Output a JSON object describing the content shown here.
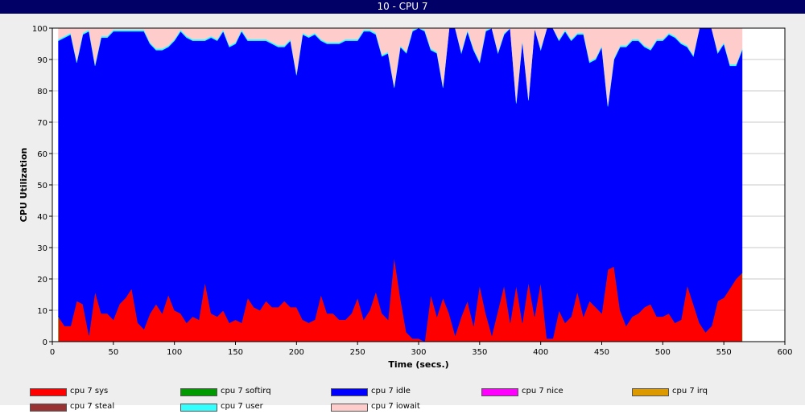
{
  "window": {
    "title": "10 - CPU 7"
  },
  "chart_data": {
    "type": "area",
    "stacked": true,
    "xlabel": "Time (secs.)",
    "ylabel": "CPU Utilization",
    "xlim": [
      0,
      600
    ],
    "ylim": [
      0,
      100
    ],
    "xticks": [
      "0",
      "50",
      "100",
      "150",
      "200",
      "250",
      "300",
      "350",
      "400",
      "450",
      "500",
      "550",
      "600"
    ],
    "yticks": [
      "0",
      "10",
      "20",
      "30",
      "40",
      "50",
      "60",
      "70",
      "80",
      "90",
      "100"
    ],
    "grid": "horizontal",
    "legend_position": "bottom",
    "x": [
      5,
      10,
      15,
      20,
      25,
      30,
      35,
      40,
      45,
      50,
      55,
      60,
      65,
      70,
      75,
      80,
      85,
      90,
      95,
      100,
      105,
      110,
      115,
      120,
      125,
      130,
      135,
      140,
      145,
      150,
      155,
      160,
      165,
      170,
      175,
      180,
      185,
      190,
      195,
      200,
      205,
      210,
      215,
      220,
      225,
      230,
      235,
      240,
      245,
      250,
      255,
      260,
      265,
      270,
      275,
      280,
      285,
      290,
      295,
      300,
      305,
      310,
      315,
      320,
      325,
      330,
      335,
      340,
      345,
      350,
      355,
      360,
      365,
      370,
      375,
      380,
      385,
      390,
      395,
      400,
      405,
      410,
      415,
      420,
      425,
      430,
      435,
      440,
      445,
      450,
      455,
      460,
      465,
      470,
      475,
      480,
      485,
      490,
      495,
      500,
      505,
      510,
      515,
      520,
      525,
      530,
      535,
      540,
      545,
      550,
      555,
      560,
      565
    ],
    "series": [
      {
        "name": "cpu 7 sys",
        "color": "#ff0000",
        "values": [
          8,
          5,
          5,
          13,
          12,
          2,
          16,
          9,
          9,
          7,
          12,
          14,
          17,
          6,
          4,
          9,
          12,
          9,
          15,
          10,
          9,
          6,
          8,
          7,
          19,
          9,
          8,
          10,
          6,
          7,
          6,
          14,
          11,
          10,
          13,
          11,
          11,
          13,
          11,
          11,
          7,
          6,
          7,
          15,
          9,
          9,
          7,
          7,
          9,
          14,
          7,
          10,
          16,
          9,
          7,
          27,
          14,
          3,
          1,
          1,
          0,
          15,
          8,
          14,
          9,
          2,
          8,
          13,
          5,
          18,
          9,
          2,
          10,
          18,
          6,
          18,
          6,
          19,
          8,
          19,
          1,
          1,
          10,
          6,
          8,
          16,
          8,
          13,
          11,
          9,
          23,
          24,
          10,
          5,
          8,
          9,
          11,
          12,
          8,
          8,
          9,
          6,
          7,
          18,
          12,
          6,
          3,
          5,
          13,
          14,
          17,
          20,
          22
        ]
      },
      {
        "name": "cpu 7 softirq",
        "color": "#009900",
        "values": [
          0,
          0,
          0,
          0,
          0,
          0,
          0,
          0,
          0,
          0,
          0,
          0,
          0,
          0,
          0,
          0,
          0,
          0,
          0,
          0,
          0,
          0,
          0,
          0,
          0,
          0,
          0,
          0,
          0,
          0,
          0,
          0,
          0,
          0,
          0,
          0,
          0,
          0,
          0,
          0,
          0,
          0,
          0,
          0,
          0,
          0,
          0,
          0,
          0,
          0,
          0,
          0,
          0,
          0,
          0,
          0,
          0,
          0,
          0,
          0,
          0,
          0,
          0,
          0,
          0,
          0,
          0,
          0,
          0,
          0,
          0,
          0,
          0,
          0,
          0,
          0,
          0,
          0,
          0,
          0,
          0,
          0,
          0,
          0,
          0,
          0,
          0,
          0,
          0,
          0,
          0,
          0,
          0,
          0,
          0,
          0,
          0,
          0,
          0,
          0,
          0,
          0,
          0,
          0,
          0,
          0,
          0,
          0,
          0,
          0,
          0,
          0,
          0
        ]
      },
      {
        "name": "cpu 7 idle",
        "color": "#0000ff",
        "values": [
          88,
          92,
          93,
          76,
          86,
          97,
          72,
          88,
          88,
          92,
          87,
          85,
          82,
          93,
          95,
          86,
          81,
          84,
          79,
          86,
          90,
          91,
          88,
          89,
          77,
          88,
          88,
          89,
          88,
          88,
          93,
          82,
          85,
          86,
          83,
          84,
          83,
          81,
          85,
          74,
          91,
          91,
          91,
          81,
          86,
          86,
          88,
          89,
          87,
          82,
          92,
          89,
          82,
          82,
          85,
          54,
          80,
          89,
          98,
          99,
          99,
          78,
          84,
          67,
          91,
          98,
          84,
          86,
          88,
          71,
          90,
          98,
          82,
          80,
          94,
          58,
          90,
          58,
          92,
          74,
          99,
          99,
          86,
          93,
          88,
          82,
          90,
          76,
          79,
          85,
          52,
          66,
          84,
          89,
          88,
          87,
          83,
          81,
          88,
          88,
          89,
          91,
          88,
          76,
          79,
          94,
          97,
          95,
          79,
          81,
          71,
          68,
          71
        ]
      },
      {
        "name": "cpu 7 nice",
        "color": "#ff00ff",
        "values": [
          0,
          0,
          0,
          0,
          0,
          0,
          0,
          0,
          0,
          0,
          0,
          0,
          0,
          0,
          0,
          0,
          0,
          0,
          0,
          0,
          0,
          0,
          0,
          0,
          0,
          0,
          0,
          0,
          0,
          0,
          0,
          0,
          0,
          0,
          0,
          0,
          0,
          0,
          0,
          0,
          0,
          0,
          0,
          0,
          0,
          0,
          0,
          0,
          0,
          0,
          0,
          0,
          0,
          0,
          0,
          0,
          0,
          0,
          0,
          0,
          0,
          0,
          0,
          0,
          0,
          0,
          0,
          0,
          0,
          0,
          0,
          0,
          0,
          0,
          0,
          0,
          0,
          0,
          0,
          0,
          0,
          0,
          0,
          0,
          0,
          0,
          0,
          0,
          0,
          0,
          0,
          0,
          0,
          0,
          0,
          0,
          0,
          0,
          0,
          0,
          0,
          0,
          0,
          0,
          0,
          0,
          0,
          0,
          0,
          0,
          0,
          0,
          0
        ]
      },
      {
        "name": "cpu 7 irq",
        "color": "#dd9900",
        "values": [
          0,
          0,
          0,
          0,
          0,
          0,
          0,
          0,
          0,
          0,
          0,
          0,
          0,
          0,
          0,
          0,
          0,
          0,
          0,
          0,
          0,
          0,
          0,
          0,
          0,
          0,
          0,
          0,
          0,
          0,
          0,
          0,
          0,
          0,
          0,
          0,
          0,
          0,
          0,
          0,
          0,
          0,
          0,
          0,
          0,
          0,
          0,
          0,
          0,
          0,
          0,
          0,
          0,
          0,
          0,
          0,
          0,
          0,
          0,
          0,
          0,
          0,
          0,
          0,
          0,
          0,
          0,
          0,
          0,
          0,
          0,
          0,
          0,
          0,
          0,
          0,
          0,
          0,
          0,
          0,
          0,
          0,
          0,
          0,
          0,
          0,
          0,
          0,
          0,
          0,
          0,
          0,
          0,
          0,
          0,
          0,
          0,
          0,
          0,
          0,
          0,
          0,
          0,
          0,
          0,
          0,
          0,
          0,
          0,
          0,
          0,
          0,
          0
        ]
      },
      {
        "name": "cpu 7 steal",
        "color": "#993333",
        "values": [
          0,
          0,
          0,
          0,
          0,
          0,
          0,
          0,
          0,
          0,
          0,
          0,
          0,
          0,
          0,
          0,
          0,
          0,
          0,
          0,
          0,
          0,
          0,
          0,
          0,
          0,
          0,
          0,
          0,
          0,
          0,
          0,
          0,
          0,
          0,
          0,
          0,
          0,
          0,
          0,
          0,
          0,
          0,
          0,
          0,
          0,
          0,
          0,
          0,
          0,
          0,
          0,
          0,
          0,
          0,
          0,
          0,
          0,
          0,
          0,
          0,
          0,
          0,
          0,
          0,
          0,
          0,
          0,
          0,
          0,
          0,
          0,
          0,
          0,
          0,
          0,
          0,
          0,
          0,
          0,
          0,
          0,
          0,
          0,
          0,
          0,
          0,
          0,
          0,
          0,
          0,
          0,
          0,
          0,
          0,
          0,
          0,
          0,
          0,
          0,
          0,
          0,
          0,
          0,
          0,
          0,
          0,
          0,
          0,
          0,
          0,
          0,
          0
        ]
      },
      {
        "name": "cpu 7 user",
        "color": "#33ffff",
        "values": [
          0.5,
          0.5,
          0.5,
          0.5,
          0.5,
          0.5,
          0.5,
          0.5,
          0.5,
          0.5,
          0.5,
          0.5,
          0.5,
          0.5,
          0.5,
          0.5,
          0.5,
          0.5,
          0.5,
          0.5,
          0.5,
          0.5,
          0.5,
          0.5,
          0.5,
          0.5,
          0.5,
          0.5,
          0.5,
          0.5,
          0.5,
          0.5,
          0.5,
          0.5,
          0.5,
          0.5,
          0.5,
          0.5,
          0.5,
          0.5,
          0.5,
          0.5,
          0.5,
          0.5,
          0.5,
          0.5,
          0.5,
          0.5,
          0.5,
          0.5,
          0.5,
          0.5,
          0.5,
          0.5,
          0.5,
          0.5,
          0.5,
          0.5,
          0.5,
          0.5,
          0.5,
          0.5,
          0.5,
          0.5,
          0.5,
          0.5,
          0.5,
          0.5,
          0.5,
          0.5,
          0.5,
          0.5,
          0.5,
          0.5,
          0.5,
          0.5,
          0.5,
          0.5,
          0.5,
          0.5,
          0.5,
          0.5,
          0.5,
          0.5,
          0.5,
          0.5,
          0.5,
          0.5,
          0.5,
          0.5,
          0.5,
          0.5,
          0.5,
          0.5,
          0.5,
          0.5,
          0.5,
          0.5,
          0.5,
          0.5,
          0.5,
          0.5,
          0.5,
          0.5,
          0.5,
          0.5,
          0.5,
          0.5,
          0.5,
          0.5,
          0.5,
          0.5,
          0.5
        ]
      },
      {
        "name": "cpu 7 iowait",
        "color": "#ffcccc",
        "values": [
          3.5,
          2.5,
          1.5,
          10.5,
          1.5,
          0.5,
          11.5,
          2.5,
          2.5,
          0.5,
          0.5,
          0.5,
          0.5,
          0.5,
          0.5,
          4.5,
          6.5,
          6.5,
          5.5,
          3.5,
          0.5,
          2.5,
          3.5,
          3.5,
          3.5,
          2.5,
          3.5,
          0.5,
          5.5,
          4.5,
          0.5,
          3.5,
          3.5,
          3.5,
          3.5,
          4.5,
          5.5,
          5.5,
          3.5,
          14.5,
          1.5,
          2.5,
          1.5,
          3.5,
          4.5,
          4.5,
          4.5,
          3.5,
          3.5,
          3.5,
          0.5,
          0.5,
          1.5,
          8.5,
          7.5,
          18.5,
          5.5,
          7.5,
          0.5,
          0,
          0.5,
          6.5,
          7.5,
          18.5,
          0,
          0,
          7.5,
          0.5,
          6.5,
          10.5,
          0.5,
          0,
          7.5,
          1.5,
          0,
          23.5,
          3.5,
          22.5,
          0,
          6.5,
          0,
          0,
          3.5,
          0.5,
          3.5,
          1.5,
          1.5,
          10.5,
          9.5,
          5.5,
          24.5,
          9.5,
          5.5,
          5.5,
          3.5,
          3.5,
          5.5,
          6.5,
          3.5,
          3.5,
          1.5,
          2.5,
          4.5,
          5.5,
          8.5,
          0,
          0,
          0,
          7.5,
          4.5,
          11.5,
          11.5,
          6.5
        ]
      }
    ]
  }
}
